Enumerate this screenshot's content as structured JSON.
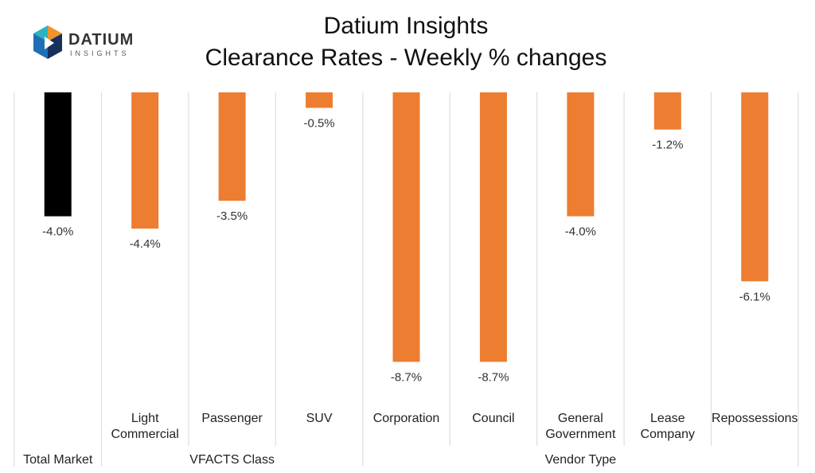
{
  "header": {
    "logo_word": "DATIUM",
    "logo_sub": "INSIGHTS",
    "title_line1": "Datium Insights",
    "title_line2": "Clearance Rates - Weekly % changes"
  },
  "colors": {
    "total": "#000000",
    "bar": "#ED7D31",
    "grid": "#D9D9D9",
    "logo_blue": "#1F6FB5",
    "logo_teal": "#2BB3C0",
    "logo_orange": "#F0932B",
    "logo_navy": "#16305E"
  },
  "chart_data": {
    "type": "bar",
    "title": "Clearance Rates - Weekly % changes",
    "categories": [
      "",
      "Light Commercial",
      "Passenger",
      "SUV",
      "Corporation",
      "Council",
      "General Government",
      "Lease Company",
      "Repossessions"
    ],
    "groups": [
      {
        "label": "Total Market",
        "span": 1
      },
      {
        "label": "VFACTS Class",
        "span": 3
      },
      {
        "label": "Vendor Type",
        "span": 5
      }
    ],
    "values": [
      -4.0,
      -4.4,
      -3.5,
      -0.5,
      -8.7,
      -8.7,
      -4.0,
      -1.2,
      -6.1
    ],
    "data_labels": [
      "-4.0%",
      "-4.4%",
      "-3.5%",
      "-0.5%",
      "-8.7%",
      "-8.7%",
      "-4.0%",
      "-1.2%",
      "-6.1%"
    ],
    "ylim": [
      -10,
      0
    ],
    "legend": "none"
  }
}
